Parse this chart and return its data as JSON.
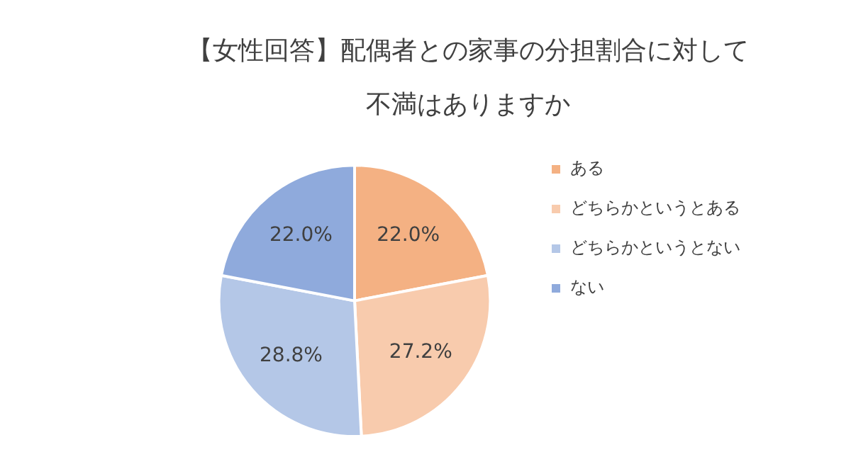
{
  "chart_data": {
    "type": "pie",
    "title": "【女性回答】配偶者との家事の分担割合に対して不満はありますか",
    "categories": [
      "ある",
      "どちらかというとある",
      "どちらかというとない",
      "ない"
    ],
    "values": [
      22.0,
      27.2,
      28.8,
      22.0
    ],
    "colors": [
      "#f4b183",
      "#f8cbad",
      "#b4c7e7",
      "#8faadc"
    ],
    "value_labels": [
      "22.0%",
      "27.2%",
      "28.8%",
      "22.0%"
    ],
    "legend": "right"
  }
}
